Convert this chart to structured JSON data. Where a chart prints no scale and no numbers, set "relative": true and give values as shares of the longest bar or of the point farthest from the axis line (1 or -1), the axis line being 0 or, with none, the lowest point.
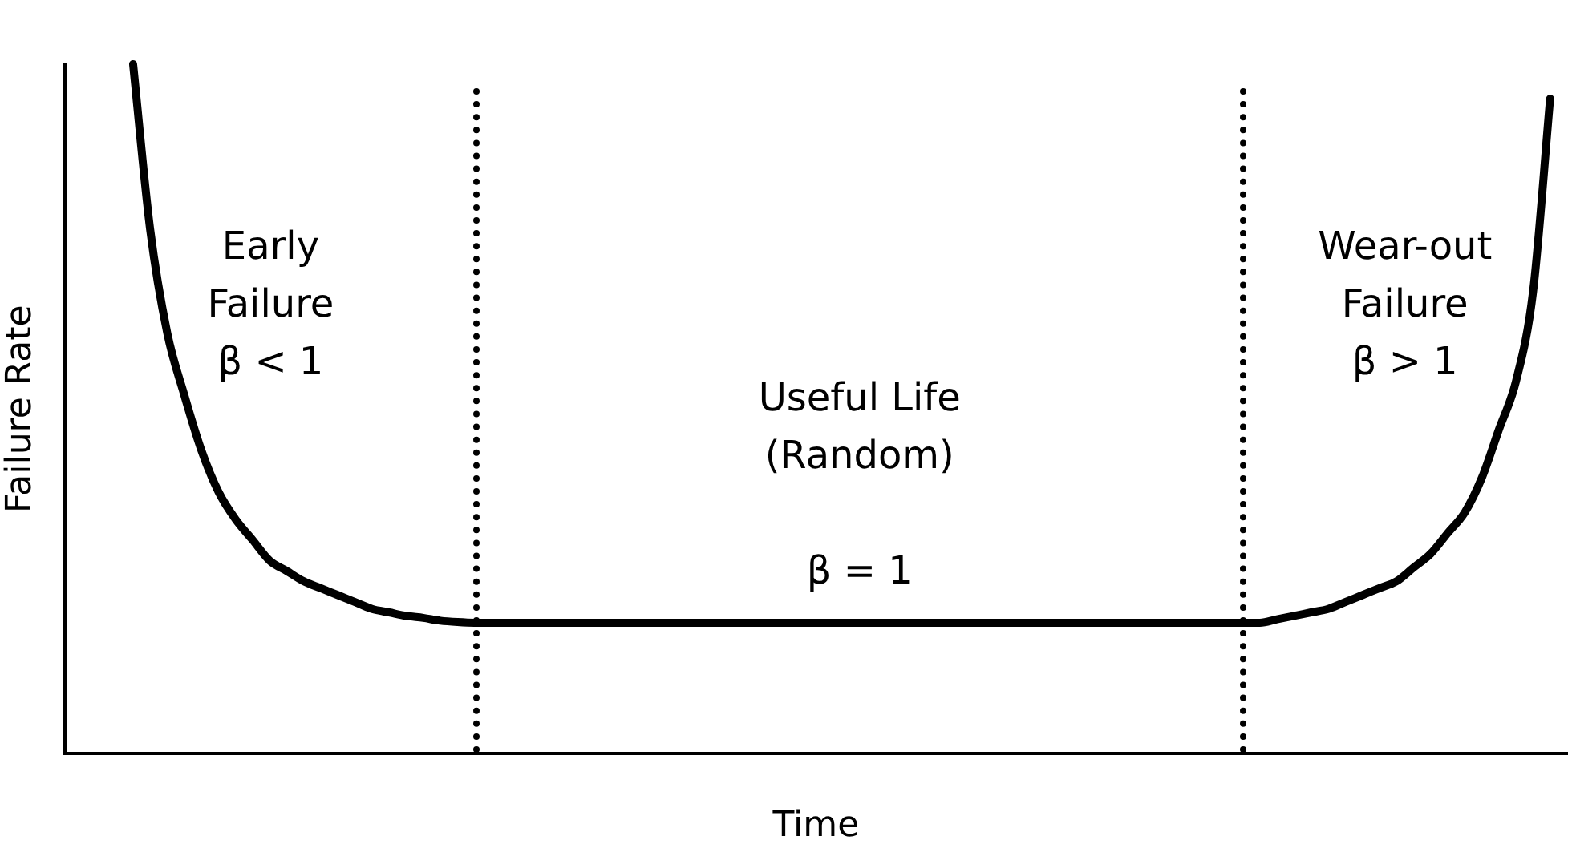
{
  "chart_data": {
    "type": "line",
    "relative": true,
    "xlabel": "Time",
    "ylabel": "Failure Rate",
    "grid": false,
    "legend": false,
    "marker": "none",
    "line_style": "solid",
    "categories": [
      null,
      null,
      null,
      null,
      null,
      null,
      null,
      null,
      null,
      null,
      null,
      null,
      null,
      null,
      null,
      null,
      null,
      null,
      null,
      null,
      null,
      null,
      null,
      null,
      null,
      null,
      null,
      null,
      null,
      null,
      null,
      null,
      null,
      null,
      null,
      null,
      null,
      null,
      null,
      null,
      null,
      null,
      null,
      null,
      null,
      null,
      null,
      null,
      null,
      null,
      null,
      null,
      null,
      null,
      null,
      null,
      null,
      null,
      null,
      null,
      null,
      null,
      null,
      null,
      null,
      null,
      null,
      null,
      null,
      null,
      null,
      null,
      null,
      null,
      null,
      null,
      null,
      null,
      null,
      null,
      null,
      null,
      null,
      null,
      null,
      null,
      null,
      null,
      null
    ],
    "series": [
      {
        "color": "#000000",
        "values": [
          null,
          null,
          null,
          null,
          1,
          0.76,
          0.61,
          0.52,
          0.44,
          0.38,
          0.34,
          0.31,
          0.28,
          0.265,
          0.25,
          0.24,
          0.23,
          0.22,
          0.21,
          0.205,
          0.2,
          0.197,
          0.193,
          0.191,
          0.19,
          0.19,
          0.19,
          0.19,
          0.19,
          0.19,
          0.19,
          0.19,
          0.19,
          0.19,
          0.19,
          0.19,
          0.19,
          0.19,
          0.19,
          0.19,
          0.19,
          0.19,
          0.19,
          0.19,
          0.19,
          0.19,
          0.19,
          0.19,
          0.19,
          0.19,
          0.19,
          0.19,
          0.19,
          0.19,
          0.19,
          0.19,
          0.19,
          0.19,
          0.19,
          0.19,
          0.19,
          0.19,
          0.19,
          0.19,
          0.19,
          0.19,
          0.19,
          0.19,
          0.19,
          0.19,
          0.19,
          0.195,
          0.2,
          0.205,
          0.21,
          0.22,
          0.23,
          0.24,
          0.25,
          0.27,
          0.29,
          0.32,
          0.35,
          0.4,
          0.47,
          0.54,
          0.67,
          0.95,
          null
        ]
      }
    ],
    "annotations": [
      "Early\nFailure\nβ < 1",
      "Useful Life\n(Random)\n\nβ = 1",
      "Wear-out\nFailure\nβ > 1"
    ]
  }
}
